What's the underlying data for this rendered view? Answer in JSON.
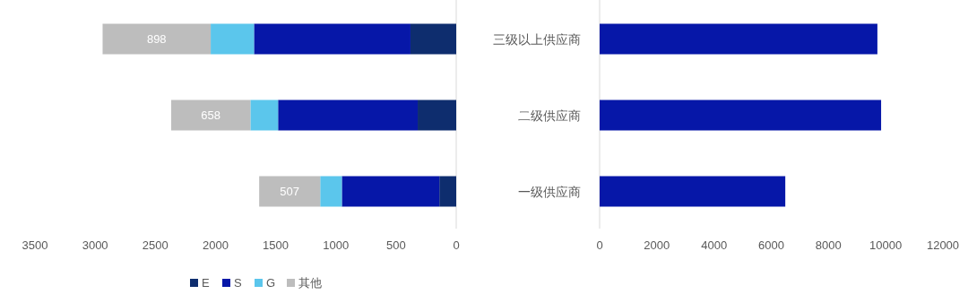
{
  "chart_data": [
    {
      "type": "bar",
      "orientation": "horizontal",
      "stacked": true,
      "categories": [
        null,
        null,
        null
      ],
      "tick_labels": "x",
      "legend": "bottom",
      "xlim": [
        3500,
        0
      ],
      "xticks": [
        3500,
        3000,
        2500,
        2000,
        1500,
        1000,
        500,
        0
      ],
      "series": [
        {
          "name": "E",
          "color": "#0e2d6e",
          "values": [
            380,
            320,
            140
          ]
        },
        {
          "name": "S",
          "color": "#0617a8",
          "values": [
            1300,
            1160,
            810
          ]
        },
        {
          "name": "G",
          "color": "#5bc6ec",
          "values": [
            360,
            230,
            180
          ]
        },
        {
          "name": "其他",
          "color": "#bdbdbd",
          "values": [
            898,
            658,
            507
          ],
          "value_labels": [
            "898",
            "658",
            "507"
          ]
        }
      ]
    },
    {
      "type": "bar",
      "orientation": "horizontal",
      "categories": [
        "三级以上供应商",
        "二级供应商",
        "一级供应商"
      ],
      "xlim": [
        0,
        12000
      ],
      "xticks": [
        0,
        2000,
        4000,
        6000,
        8000,
        10000,
        12000
      ],
      "series": [
        {
          "color": "#0617a8",
          "values": [
            9710,
            9840,
            6490
          ]
        }
      ]
    }
  ]
}
